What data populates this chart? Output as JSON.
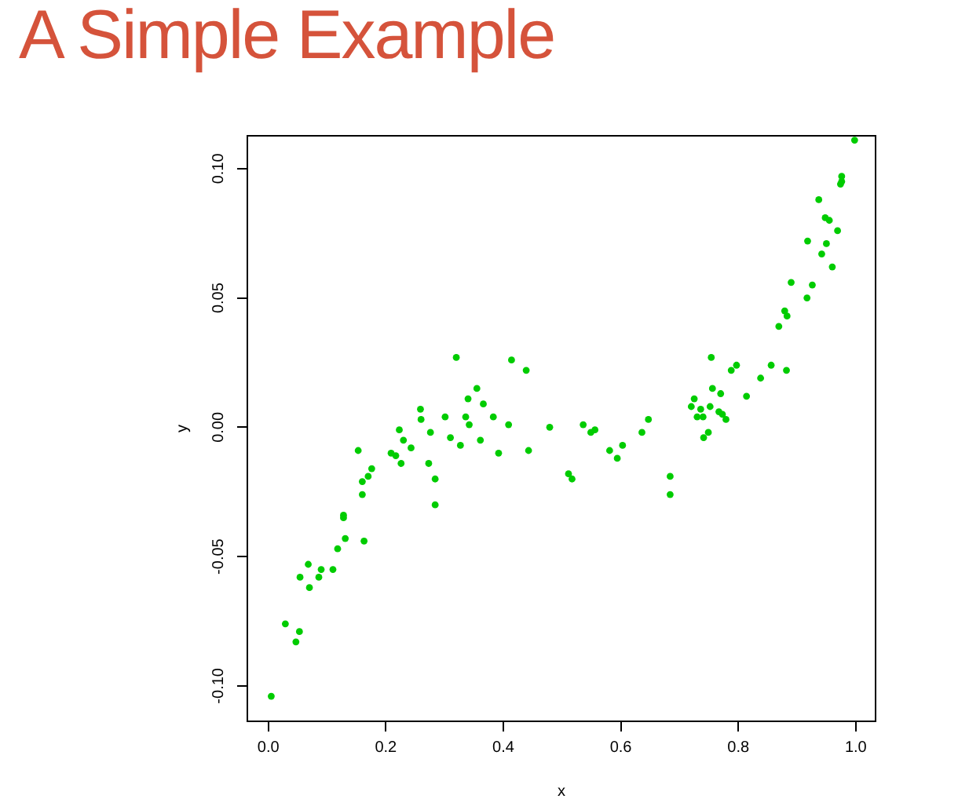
{
  "chart_data": {
    "type": "scatter",
    "title": "A Simple Example",
    "xlabel": "x",
    "ylabel": "y",
    "xlim": [
      -0.037,
      1.035
    ],
    "ylim": [
      -0.114,
      0.113
    ],
    "xticks": [
      {
        "value": 0,
        "label": "0.0"
      },
      0.2,
      0.4,
      0.6,
      0.8,
      {
        "value": 1,
        "label": "1.0"
      }
    ],
    "yticks": [
      {
        "value": -0.1,
        "label": "-0.10"
      },
      {
        "value": -0.05,
        "label": "-0.05"
      },
      {
        "value": 0,
        "label": "0.00"
      },
      0.05,
      {
        "value": 0.1,
        "label": "0.10"
      }
    ],
    "grid": false,
    "legend": false,
    "marker": "circle",
    "series": [
      {
        "color": "#00cc00",
        "x": [
          0.005,
          0.029,
          0.047,
          0.053,
          0.054,
          0.068,
          0.07,
          0.086,
          0.09,
          0.11,
          0.118,
          0.128,
          0.128,
          0.131,
          0.153,
          0.16,
          0.16,
          0.163,
          0.17,
          0.176,
          0.209,
          0.217,
          0.223,
          0.226,
          0.23,
          0.243,
          0.259,
          0.26,
          0.273,
          0.276,
          0.284,
          0.284,
          0.301,
          0.31,
          0.32,
          0.327,
          0.336,
          0.34,
          0.342,
          0.355,
          0.361,
          0.366,
          0.383,
          0.392,
          0.409,
          0.414,
          0.439,
          0.443,
          0.479,
          0.511,
          0.517,
          0.536,
          0.549,
          0.556,
          0.581,
          0.594,
          0.603,
          0.636,
          0.647,
          0.684,
          0.684,
          0.72,
          0.725,
          0.73,
          0.736,
          0.74,
          0.741,
          0.749,
          0.752,
          0.754,
          0.756,
          0.767,
          0.77,
          0.773,
          0.779,
          0.788,
          0.797,
          0.814,
          0.838,
          0.856,
          0.869,
          0.879,
          0.882,
          0.883,
          0.89,
          0.917,
          0.918,
          0.926,
          0.937,
          0.942,
          0.948,
          0.95,
          0.955,
          0.96,
          0.969,
          0.974,
          0.976,
          0.976,
          0.998
        ],
        "values": [
          -0.104,
          -0.076,
          -0.083,
          -0.079,
          -0.058,
          -0.053,
          -0.062,
          -0.058,
          -0.055,
          -0.055,
          -0.047,
          -0.035,
          -0.034,
          -0.043,
          -0.009,
          -0.021,
          -0.026,
          -0.044,
          -0.019,
          -0.016,
          -0.01,
          -0.011,
          -0.001,
          -0.014,
          -0.005,
          -0.008,
          0.007,
          0.003,
          -0.014,
          -0.002,
          -0.02,
          -0.03,
          0.004,
          -0.004,
          0.027,
          -0.007,
          0.004,
          0.011,
          0.001,
          0.015,
          -0.005,
          0.009,
          0.004,
          -0.01,
          0.001,
          0.026,
          0.022,
          -0.009,
          0.0,
          -0.018,
          -0.02,
          0.001,
          -0.002,
          -0.001,
          -0.009,
          -0.012,
          -0.007,
          -0.002,
          0.003,
          -0.019,
          -0.026,
          0.008,
          0.011,
          0.004,
          0.007,
          0.004,
          -0.004,
          -0.002,
          0.008,
          0.027,
          0.015,
          0.006,
          0.013,
          0.005,
          0.003,
          0.022,
          0.024,
          0.012,
          0.019,
          0.024,
          0.039,
          0.045,
          0.022,
          0.043,
          0.056,
          0.05,
          0.072,
          0.055,
          0.088,
          0.067,
          0.081,
          0.071,
          0.08,
          0.062,
          0.076,
          0.094,
          0.095,
          0.097,
          0.111
        ]
      }
    ]
  }
}
